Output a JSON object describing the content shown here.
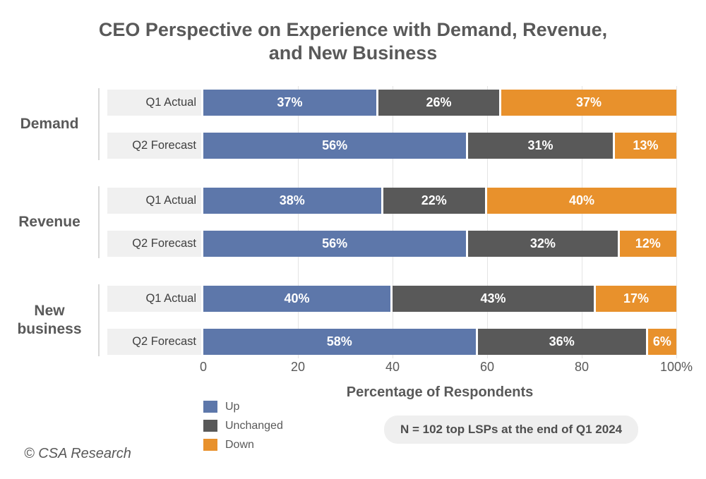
{
  "title": {
    "lines": [
      "CEO Perspective on Experience with Demand, Revenue,",
      "and New Business"
    ]
  },
  "chart_data": {
    "type": "bar",
    "stacked": true,
    "orientation": "horizontal",
    "title": "CEO Perspective on Experience with Demand, Revenue, and New Business",
    "xlabel": "Percentage of Respondents",
    "ylabel": "",
    "xlim": [
      0,
      100
    ],
    "x_ticks": [
      "0",
      "20",
      "40",
      "60",
      "80",
      "100%"
    ],
    "grid": "vertical-light",
    "legend_position": "bottom-left",
    "series_names": [
      "Up",
      "Unchanged",
      "Down"
    ],
    "groups": [
      {
        "label": "Demand",
        "rows": [
          {
            "label": "Q1 Actual",
            "values": [
              37,
              26,
              37
            ]
          },
          {
            "label": "Q2 Forecast",
            "values": [
              56,
              31,
              13
            ]
          }
        ]
      },
      {
        "label": "Revenue",
        "rows": [
          {
            "label": "Q1 Actual",
            "values": [
              38,
              22,
              40
            ]
          },
          {
            "label": "Q2 Forecast",
            "values": [
              56,
              32,
              12
            ]
          }
        ]
      },
      {
        "label": "New business",
        "rows": [
          {
            "label": "Q1 Actual",
            "values": [
              40,
              43,
              17
            ]
          },
          {
            "label": "Q2 Forecast",
            "values": [
              58,
              36,
              6
            ]
          }
        ]
      }
    ],
    "legend": [
      {
        "name": "Up",
        "color": "#5d77aa"
      },
      {
        "name": "Unchanged",
        "color": "#595959"
      },
      {
        "name": "Down",
        "color": "#e8912c"
      }
    ],
    "note": "N = 102 top LSPs at the end of Q1 2024",
    "colors": {
      "up": "#5d77aa",
      "unchanged": "#595959",
      "down": "#e8912c",
      "text": "#595959",
      "row_label_bg": "#f0f0f0",
      "note_bg": "#efefef",
      "gridline": "#e4e4e4",
      "bracket": "#d9d9d9"
    }
  },
  "footer": {
    "copyright": "© CSA Research"
  }
}
